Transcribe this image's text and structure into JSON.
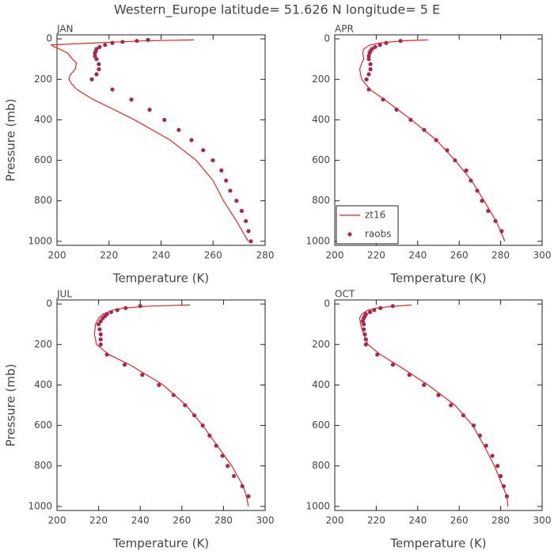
{
  "title": "Western_Europe  latitude= 51.626 N longitude= 5 E",
  "chart_data": [
    {
      "type": "line",
      "title": "JAN",
      "xlabel": "Temperature (K)",
      "ylabel": "Pressure (mb)",
      "xlim": [
        200,
        280
      ],
      "xticks": [
        200,
        220,
        240,
        260,
        280
      ],
      "ylim": [
        -20,
        1020
      ],
      "yticks": [
        0,
        200,
        400,
        600,
        800,
        1000
      ],
      "invert_y": true,
      "series": [
        {
          "name": "zt16",
          "color": "#e8251f",
          "style": "line",
          "x": [
            273.5,
            269,
            264,
            260,
            253.5,
            243.5,
            229.8,
            222,
            214,
            207.6,
            205.5,
            204.6,
            205,
            207,
            207.5,
            206,
            204,
            201,
            199,
            197.8,
            214.6,
            233,
            252.6
          ],
          "values": [
            1000,
            900,
            800,
            700,
            600,
            500,
            400,
            350,
            300,
            250,
            220,
            200,
            180,
            150,
            120,
            100,
            70,
            50,
            40,
            30,
            20,
            10,
            5
          ]
        },
        {
          "name": "raobs",
          "color": "#a8284f",
          "style": "points",
          "x": [
            274.5,
            273.6,
            272.6,
            271,
            269,
            266.6,
            265,
            263.2,
            259.9,
            256.2,
            251.7,
            246.8,
            241.3,
            235.6,
            228.6,
            221.3,
            213.4,
            215.2,
            216.1,
            216.1,
            215.2,
            214.6,
            214.6,
            214.9,
            215.2,
            216.4,
            218.5,
            221.3,
            225.2,
            230.7,
            235
          ],
          "values": [
            1000,
            950,
            900,
            850,
            800,
            750,
            700,
            650,
            600,
            550,
            500,
            450,
            400,
            350,
            300,
            250,
            200,
            175,
            150,
            125,
            100,
            85,
            70,
            60,
            50,
            40,
            30,
            20,
            15,
            10,
            5
          ]
        }
      ]
    },
    {
      "type": "line",
      "title": "APR",
      "xlabel": "Temperature (K)",
      "legend": "lower left",
      "xlim": [
        200,
        300
      ],
      "xticks": [
        200,
        220,
        240,
        260,
        280,
        300
      ],
      "ylim": [
        -20,
        1020
      ],
      "yticks": [
        0,
        200,
        400,
        600,
        800,
        1000
      ],
      "invert_y": true,
      "series": [
        {
          "name": "zt16",
          "color": "#e8251f",
          "style": "line",
          "x": [
            282,
            280,
            277.8,
            272,
            266,
            258,
            249,
            237,
            224,
            217,
            213,
            212,
            213,
            214,
            213.5,
            214,
            217,
            222,
            232,
            245
          ],
          "values": [
            1000,
            950,
            900,
            800,
            700,
            600,
            500,
            400,
            300,
            250,
            200,
            150,
            120,
            100,
            70,
            50,
            30,
            20,
            10,
            5
          ]
        },
        {
          "name": "raobs",
          "color": "#a8284f",
          "style": "points",
          "x": [
            280.5,
            277.5,
            274,
            271,
            268.7,
            265.6,
            263.4,
            258,
            254.2,
            248.9,
            243.1,
            236.6,
            229.8,
            223.3,
            216.4,
            215.3,
            216.4,
            217.2,
            217.2,
            216.4,
            216.4,
            216.8,
            217.2,
            218,
            219.5,
            221.8,
            224.8,
            231.7
          ],
          "values": [
            950,
            900,
            850,
            800,
            750,
            700,
            650,
            600,
            550,
            500,
            450,
            400,
            350,
            300,
            250,
            200,
            175,
            150,
            125,
            100,
            85,
            70,
            60,
            50,
            40,
            30,
            20,
            10
          ]
        }
      ]
    },
    {
      "type": "line",
      "title": "JUL",
      "xlabel": "Temperature (K)",
      "ylabel": "Pressure (mb)",
      "xlim": [
        200,
        300
      ],
      "xticks": [
        200,
        220,
        240,
        260,
        280,
        300
      ],
      "ylim": [
        -20,
        1020
      ],
      "yticks": [
        0,
        200,
        400,
        600,
        800,
        1000
      ],
      "invert_y": true,
      "series": [
        {
          "name": "zt16",
          "color": "#e8251f",
          "style": "line",
          "x": [
            292,
            291,
            289.5,
            284,
            277,
            270,
            262,
            251,
            235,
            225,
            219,
            218,
            218.5,
            220,
            222,
            227,
            232,
            245,
            264
          ],
          "values": [
            1000,
            950,
            900,
            800,
            700,
            600,
            500,
            400,
            300,
            250,
            200,
            150,
            100,
            70,
            50,
            30,
            20,
            10,
            5
          ]
        },
        {
          "name": "raobs",
          "color": "#a8284f",
          "style": "points",
          "x": [
            292,
            289,
            285,
            282,
            279.5,
            276.5,
            273.3,
            270,
            266,
            261.5,
            256,
            249,
            241,
            232.5,
            224,
            221,
            221,
            221,
            220.5,
            220,
            221,
            222,
            223,
            224,
            226,
            229,
            233,
            240
          ],
          "values": [
            950,
            900,
            850,
            800,
            750,
            700,
            650,
            600,
            550,
            500,
            450,
            400,
            350,
            300,
            250,
            200,
            175,
            150,
            125,
            100,
            85,
            70,
            60,
            50,
            40,
            30,
            20,
            10
          ]
        }
      ]
    },
    {
      "type": "line",
      "title": "OCT",
      "xlabel": "Temperature (K)",
      "xlim": [
        200,
        300
      ],
      "xticks": [
        200,
        220,
        240,
        260,
        280,
        300
      ],
      "ylim": [
        -20,
        1020
      ],
      "yticks": [
        0,
        200,
        400,
        600,
        800,
        1000
      ],
      "invert_y": true,
      "series": [
        {
          "name": "zt16",
          "color": "#e8251f",
          "style": "line",
          "x": [
            283.5,
            283,
            281,
            277,
            272,
            266.5,
            258,
            245,
            230,
            222,
            216,
            214,
            213,
            212.5,
            212,
            213,
            216,
            220,
            230,
            237
          ],
          "values": [
            1000,
            950,
            900,
            800,
            700,
            600,
            500,
            400,
            300,
            250,
            200,
            150,
            120,
            100,
            70,
            50,
            30,
            20,
            10,
            5
          ]
        },
        {
          "name": "raobs",
          "color": "#a8284f",
          "style": "points",
          "x": [
            283,
            281.5,
            280,
            278.5,
            276,
            273,
            270,
            267,
            262,
            256,
            250,
            243,
            236,
            228,
            220.5,
            215,
            215,
            214.5,
            214,
            214,
            213.5,
            214,
            214.5,
            215,
            217,
            219,
            222,
            228
          ],
          "values": [
            950,
            900,
            850,
            800,
            750,
            700,
            650,
            600,
            550,
            500,
            450,
            400,
            350,
            300,
            250,
            200,
            175,
            150,
            125,
            100,
            85,
            70,
            60,
            50,
            40,
            30,
            20,
            10
          ]
        }
      ]
    }
  ]
}
